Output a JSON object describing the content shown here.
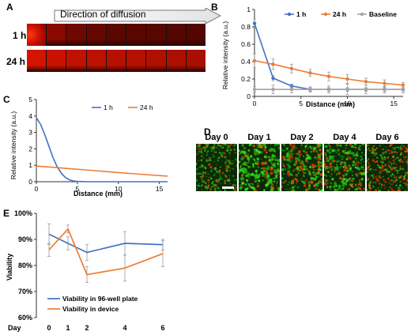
{
  "panel_letters": {
    "a": "A",
    "b": "B",
    "c": "C",
    "d": "D",
    "e": "E"
  },
  "panel_a": {
    "arrow_label": "Direction of diffusion",
    "rows": [
      {
        "label": "1 h",
        "tiles": [
          "#ff1a00",
          "#8a0a00",
          "#6e0800",
          "#650800",
          "#5c0600",
          "#5a0600",
          "#580600",
          "#560600",
          "#540500"
        ]
      },
      {
        "label": "24 h",
        "tiles": [
          "#d41400",
          "#c81200",
          "#c01200",
          "#bc1100",
          "#b81000",
          "#b41000",
          "#b01000",
          "#ac0f00",
          "#a80f00"
        ]
      }
    ]
  },
  "panel_d": {
    "days": [
      "Day 0",
      "Day 1",
      "Day 2",
      "Day 4",
      "Day 6"
    ]
  },
  "chart_data": [
    {
      "panel": "B",
      "type": "line",
      "xlabel": "Distance (mm)",
      "ylabel": "Relative intensity (a.u.)",
      "xlim": [
        0,
        16
      ],
      "ylim": [
        0,
        1.0
      ],
      "xticks": [
        "0",
        "5",
        "10",
        "15"
      ],
      "yticks": [
        "0",
        "0.2",
        "0.4",
        "0.6",
        "0.8",
        "1"
      ],
      "legend_position": "top-right",
      "series": [
        {
          "name": "1 h",
          "color": "#4472c4",
          "x": [
            0,
            2,
            4,
            6,
            8,
            10,
            12,
            14,
            16
          ],
          "y": [
            0.84,
            0.21,
            0.12,
            0.08,
            0.08,
            0.08,
            0.08,
            0.08,
            0.08
          ],
          "markers": true,
          "err": [
            0.05,
            0.03,
            0.02,
            0.02,
            0.02,
            0.02,
            0.02,
            0.02,
            0.02
          ]
        },
        {
          "name": "24 h",
          "color": "#ed7d31",
          "x": [
            0,
            2,
            4,
            6,
            8,
            10,
            12,
            14,
            16
          ],
          "y": [
            0.41,
            0.37,
            0.32,
            0.27,
            0.23,
            0.2,
            0.17,
            0.15,
            0.13
          ],
          "markers": true,
          "err": [
            0.08,
            0.06,
            0.05,
            0.04,
            0.05,
            0.05,
            0.04,
            0.04,
            0.03
          ]
        },
        {
          "name": "Baseline",
          "color": "#a5a5a5",
          "x": [
            0,
            2,
            4,
            6,
            8,
            10,
            12,
            14,
            16
          ],
          "y": [
            0.08,
            0.08,
            0.08,
            0.08,
            0.08,
            0.08,
            0.08,
            0.08,
            0.08
          ],
          "markers": true,
          "err": [
            0.03,
            0.05,
            0.04,
            0.03,
            0.04,
            0.06,
            0.05,
            0.04,
            0.04
          ]
        }
      ]
    },
    {
      "panel": "C",
      "type": "line",
      "xlabel": "Distance (mm)",
      "ylabel": "Relative intensity (a.u.)",
      "xlim": [
        0,
        16
      ],
      "ylim": [
        0,
        5
      ],
      "xticks": [
        "0",
        "5",
        "10",
        "15"
      ],
      "yticks": [
        "0",
        "1",
        "2",
        "3",
        "4",
        "5"
      ],
      "legend_position": "top-right",
      "series": [
        {
          "name": "1 h",
          "color": "#4472c4",
          "x": [
            0,
            0.5,
            1,
            1.5,
            2,
            2.5,
            3,
            3.5,
            4,
            4.5,
            5,
            5.5,
            6,
            7,
            8,
            10,
            12,
            14,
            16
          ],
          "y": [
            3.9,
            3.5,
            2.9,
            2.2,
            1.5,
            0.95,
            0.55,
            0.28,
            0.12,
            0.05,
            0.02,
            0.01,
            0,
            0,
            0,
            0,
            0,
            0,
            0
          ]
        },
        {
          "name": "24 h",
          "color": "#ed7d31",
          "x": [
            0,
            2,
            4,
            6,
            8,
            10,
            12,
            14,
            16
          ],
          "y": [
            0.95,
            0.88,
            0.8,
            0.72,
            0.64,
            0.56,
            0.48,
            0.41,
            0.34
          ]
        }
      ]
    },
    {
      "panel": "E",
      "type": "line",
      "xlabel": "Day",
      "ylabel": "Viability",
      "ylim": [
        60,
        100
      ],
      "categories": [
        "0",
        "1",
        "2",
        "4",
        "6"
      ],
      "yticks": [
        "60%",
        "70%",
        "80%",
        "90%",
        "100%"
      ],
      "legend_position": "bottom-left",
      "series": [
        {
          "name": "Viability in 96-well plate",
          "color": "#4472c4",
          "values": [
            92,
            88.5,
            85,
            88.5,
            88
          ],
          "err": [
            4,
            2.5,
            3,
            4.5,
            2
          ]
        },
        {
          "name": "Viability in device",
          "color": "#ed7d31",
          "values": [
            86,
            94,
            76.5,
            79,
            84.5
          ],
          "err": [
            2.5,
            1.5,
            3,
            5,
            5
          ]
        }
      ]
    }
  ]
}
